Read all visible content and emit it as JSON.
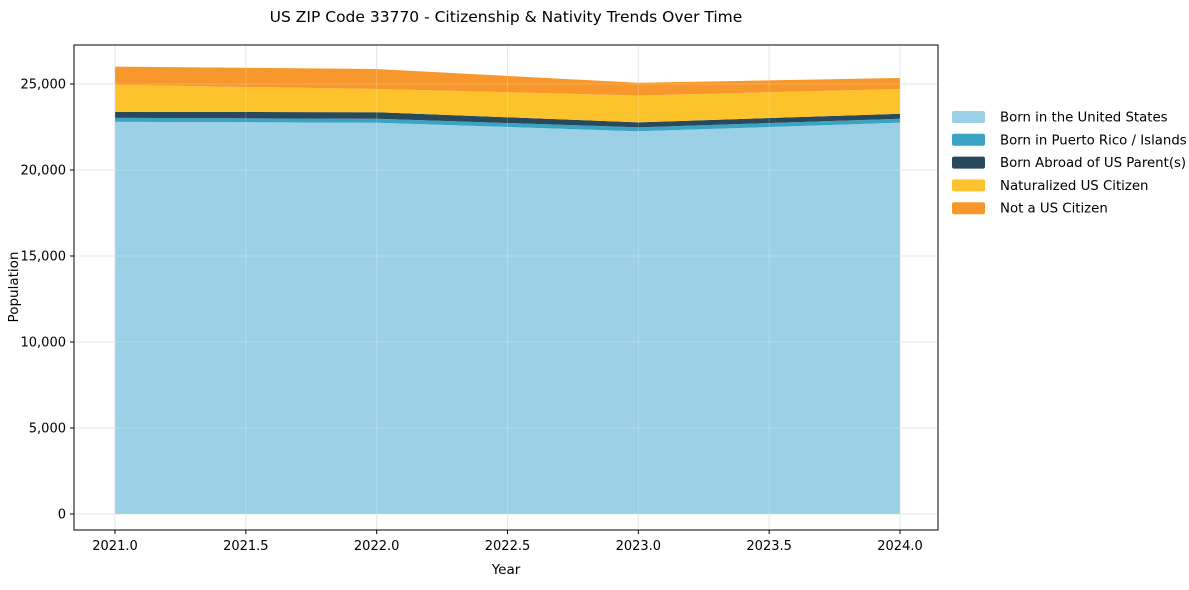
{
  "chart_data": {
    "type": "area",
    "stacked": true,
    "title": "US ZIP Code 33770 - Citizenship & Nativity Trends Over Time",
    "xlabel": "Year",
    "ylabel": "Population",
    "x": [
      2021,
      2022,
      2023,
      2024
    ],
    "series": [
      {
        "name": "Born in the United States",
        "color": "#9CD0E6",
        "values": [
          22800,
          22750,
          22250,
          22750
        ]
      },
      {
        "name": "Born in Puerto Rico / Islands",
        "color": "#3BA4C5",
        "values": [
          230,
          230,
          230,
          230
        ]
      },
      {
        "name": "Born Abroad of US Parent(s)",
        "color": "#28495C",
        "values": [
          350,
          380,
          290,
          290
        ]
      },
      {
        "name": "Naturalized US Citizen",
        "color": "#FCC32D",
        "values": [
          1570,
          1350,
          1560,
          1440
        ]
      },
      {
        "name": "Not a US Citizen",
        "color": "#F8982C",
        "values": [
          1060,
          1160,
          740,
          640
        ]
      }
    ],
    "totals": [
      26010,
      25870,
      25070,
      25350
    ],
    "xlim": [
      2020.84,
      2024.15
    ],
    "ylim": [
      0,
      25000
    ],
    "xticks": {
      "values": [
        2021.0,
        2021.5,
        2022.0,
        2022.5,
        2023.0,
        2023.5,
        2024.0
      ],
      "labels": [
        "2021.0",
        "2021.5",
        "2022.0",
        "2022.5",
        "2023.0",
        "2023.5",
        "2024.0"
      ]
    },
    "yticks": {
      "values": [
        0,
        5000,
        10000,
        15000,
        20000,
        25000
      ],
      "labels": [
        "0",
        "5,000",
        "10,000",
        "15,000",
        "20,000",
        "25,000"
      ]
    },
    "grid": true,
    "legend_position": "right"
  }
}
